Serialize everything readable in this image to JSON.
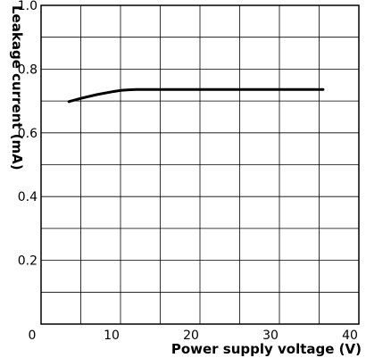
{
  "chart_data": {
    "type": "line",
    "xlabel": "Power supply voltage (V)",
    "ylabel": "Leakage current (mA)",
    "xlim": [
      0,
      40
    ],
    "ylim": [
      0,
      1.0
    ],
    "x_ticks": [
      0,
      10,
      20,
      30,
      40
    ],
    "y_ticks": [
      0.2,
      0.4,
      0.6,
      0.8,
      1.0
    ],
    "x_tick_labels": [
      "0",
      "10",
      "20",
      "30",
      "40"
    ],
    "y_tick_labels": [
      "0.2",
      "0.4",
      "0.6",
      "0.8",
      "1.0"
    ],
    "x_grid_step": 5,
    "y_grid_step": 0.1,
    "grid": true,
    "series": [
      {
        "x": [
          3.5,
          5,
          7,
          9,
          10,
          11,
          12,
          15,
          20,
          25,
          30,
          35.5
        ],
        "y": [
          0.698,
          0.708,
          0.72,
          0.729,
          0.733,
          0.735,
          0.736,
          0.736,
          0.736,
          0.736,
          0.736,
          0.736
        ],
        "color": "#000000"
      }
    ]
  }
}
